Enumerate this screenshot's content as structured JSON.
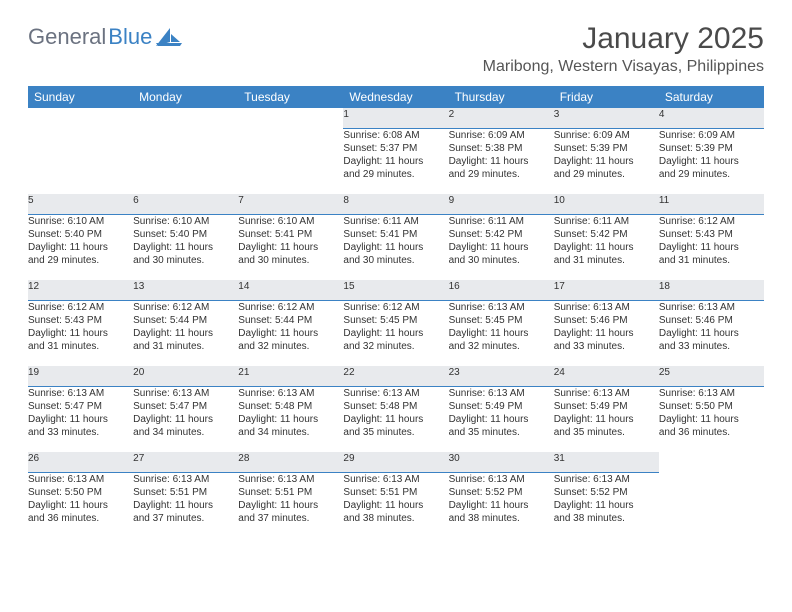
{
  "brand": {
    "general": "General",
    "blue": "Blue"
  },
  "title": "January 2025",
  "location": "Maribong, Western Visayas, Philippines",
  "colors": {
    "header_bg": "#3b82c4",
    "header_text": "#ffffff",
    "daynum_bg": "#e8eaed",
    "daynum_border": "#3b82c4",
    "body_text": "#333333",
    "title_text": "#4a4a4a",
    "logo_gray": "#6b7280",
    "logo_blue": "#3b82c4",
    "page_bg": "#ffffff"
  },
  "typography": {
    "month_title_fontsize": 30,
    "location_fontsize": 16,
    "weekday_fontsize": 12,
    "daynum_fontsize": 12,
    "detail_fontsize": 10
  },
  "weekdays": [
    "Sunday",
    "Monday",
    "Tuesday",
    "Wednesday",
    "Thursday",
    "Friday",
    "Saturday"
  ],
  "weeks": [
    [
      null,
      null,
      null,
      {
        "n": "1",
        "sr": "Sunrise: 6:08 AM",
        "ss": "Sunset: 5:37 PM",
        "d1": "Daylight: 11 hours",
        "d2": "and 29 minutes."
      },
      {
        "n": "2",
        "sr": "Sunrise: 6:09 AM",
        "ss": "Sunset: 5:38 PM",
        "d1": "Daylight: 11 hours",
        "d2": "and 29 minutes."
      },
      {
        "n": "3",
        "sr": "Sunrise: 6:09 AM",
        "ss": "Sunset: 5:39 PM",
        "d1": "Daylight: 11 hours",
        "d2": "and 29 minutes."
      },
      {
        "n": "4",
        "sr": "Sunrise: 6:09 AM",
        "ss": "Sunset: 5:39 PM",
        "d1": "Daylight: 11 hours",
        "d2": "and 29 minutes."
      }
    ],
    [
      {
        "n": "5",
        "sr": "Sunrise: 6:10 AM",
        "ss": "Sunset: 5:40 PM",
        "d1": "Daylight: 11 hours",
        "d2": "and 29 minutes."
      },
      {
        "n": "6",
        "sr": "Sunrise: 6:10 AM",
        "ss": "Sunset: 5:40 PM",
        "d1": "Daylight: 11 hours",
        "d2": "and 30 minutes."
      },
      {
        "n": "7",
        "sr": "Sunrise: 6:10 AM",
        "ss": "Sunset: 5:41 PM",
        "d1": "Daylight: 11 hours",
        "d2": "and 30 minutes."
      },
      {
        "n": "8",
        "sr": "Sunrise: 6:11 AM",
        "ss": "Sunset: 5:41 PM",
        "d1": "Daylight: 11 hours",
        "d2": "and 30 minutes."
      },
      {
        "n": "9",
        "sr": "Sunrise: 6:11 AM",
        "ss": "Sunset: 5:42 PM",
        "d1": "Daylight: 11 hours",
        "d2": "and 30 minutes."
      },
      {
        "n": "10",
        "sr": "Sunrise: 6:11 AM",
        "ss": "Sunset: 5:42 PM",
        "d1": "Daylight: 11 hours",
        "d2": "and 31 minutes."
      },
      {
        "n": "11",
        "sr": "Sunrise: 6:12 AM",
        "ss": "Sunset: 5:43 PM",
        "d1": "Daylight: 11 hours",
        "d2": "and 31 minutes."
      }
    ],
    [
      {
        "n": "12",
        "sr": "Sunrise: 6:12 AM",
        "ss": "Sunset: 5:43 PM",
        "d1": "Daylight: 11 hours",
        "d2": "and 31 minutes."
      },
      {
        "n": "13",
        "sr": "Sunrise: 6:12 AM",
        "ss": "Sunset: 5:44 PM",
        "d1": "Daylight: 11 hours",
        "d2": "and 31 minutes."
      },
      {
        "n": "14",
        "sr": "Sunrise: 6:12 AM",
        "ss": "Sunset: 5:44 PM",
        "d1": "Daylight: 11 hours",
        "d2": "and 32 minutes."
      },
      {
        "n": "15",
        "sr": "Sunrise: 6:12 AM",
        "ss": "Sunset: 5:45 PM",
        "d1": "Daylight: 11 hours",
        "d2": "and 32 minutes."
      },
      {
        "n": "16",
        "sr": "Sunrise: 6:13 AM",
        "ss": "Sunset: 5:45 PM",
        "d1": "Daylight: 11 hours",
        "d2": "and 32 minutes."
      },
      {
        "n": "17",
        "sr": "Sunrise: 6:13 AM",
        "ss": "Sunset: 5:46 PM",
        "d1": "Daylight: 11 hours",
        "d2": "and 33 minutes."
      },
      {
        "n": "18",
        "sr": "Sunrise: 6:13 AM",
        "ss": "Sunset: 5:46 PM",
        "d1": "Daylight: 11 hours",
        "d2": "and 33 minutes."
      }
    ],
    [
      {
        "n": "19",
        "sr": "Sunrise: 6:13 AM",
        "ss": "Sunset: 5:47 PM",
        "d1": "Daylight: 11 hours",
        "d2": "and 33 minutes."
      },
      {
        "n": "20",
        "sr": "Sunrise: 6:13 AM",
        "ss": "Sunset: 5:47 PM",
        "d1": "Daylight: 11 hours",
        "d2": "and 34 minutes."
      },
      {
        "n": "21",
        "sr": "Sunrise: 6:13 AM",
        "ss": "Sunset: 5:48 PM",
        "d1": "Daylight: 11 hours",
        "d2": "and 34 minutes."
      },
      {
        "n": "22",
        "sr": "Sunrise: 6:13 AM",
        "ss": "Sunset: 5:48 PM",
        "d1": "Daylight: 11 hours",
        "d2": "and 35 minutes."
      },
      {
        "n": "23",
        "sr": "Sunrise: 6:13 AM",
        "ss": "Sunset: 5:49 PM",
        "d1": "Daylight: 11 hours",
        "d2": "and 35 minutes."
      },
      {
        "n": "24",
        "sr": "Sunrise: 6:13 AM",
        "ss": "Sunset: 5:49 PM",
        "d1": "Daylight: 11 hours",
        "d2": "and 35 minutes."
      },
      {
        "n": "25",
        "sr": "Sunrise: 6:13 AM",
        "ss": "Sunset: 5:50 PM",
        "d1": "Daylight: 11 hours",
        "d2": "and 36 minutes."
      }
    ],
    [
      {
        "n": "26",
        "sr": "Sunrise: 6:13 AM",
        "ss": "Sunset: 5:50 PM",
        "d1": "Daylight: 11 hours",
        "d2": "and 36 minutes."
      },
      {
        "n": "27",
        "sr": "Sunrise: 6:13 AM",
        "ss": "Sunset: 5:51 PM",
        "d1": "Daylight: 11 hours",
        "d2": "and 37 minutes."
      },
      {
        "n": "28",
        "sr": "Sunrise: 6:13 AM",
        "ss": "Sunset: 5:51 PM",
        "d1": "Daylight: 11 hours",
        "d2": "and 37 minutes."
      },
      {
        "n": "29",
        "sr": "Sunrise: 6:13 AM",
        "ss": "Sunset: 5:51 PM",
        "d1": "Daylight: 11 hours",
        "d2": "and 38 minutes."
      },
      {
        "n": "30",
        "sr": "Sunrise: 6:13 AM",
        "ss": "Sunset: 5:52 PM",
        "d1": "Daylight: 11 hours",
        "d2": "and 38 minutes."
      },
      {
        "n": "31",
        "sr": "Sunrise: 6:13 AM",
        "ss": "Sunset: 5:52 PM",
        "d1": "Daylight: 11 hours",
        "d2": "and 38 minutes."
      },
      null
    ]
  ]
}
